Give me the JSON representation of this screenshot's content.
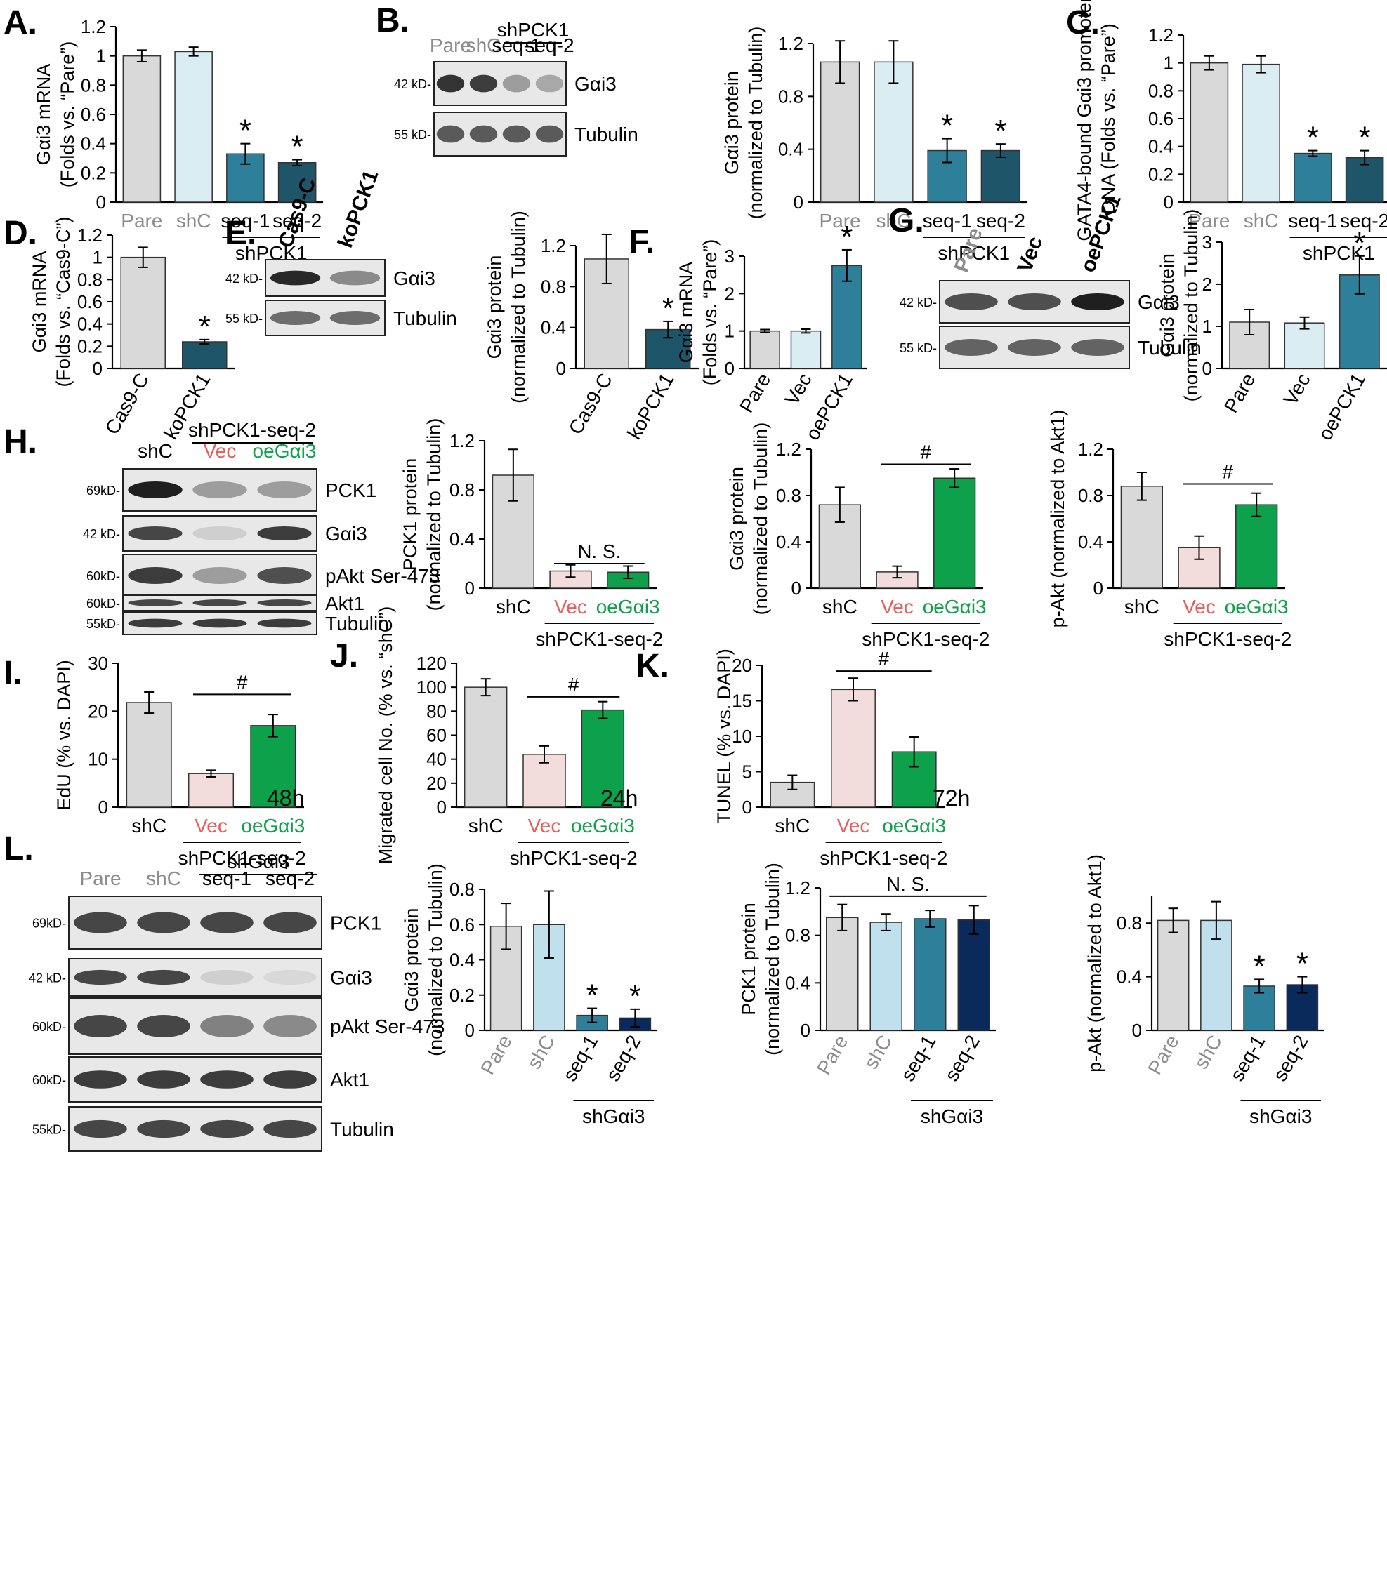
{
  "colors": {
    "gray": "#d9d9d9",
    "lightblue": "#d9edf3",
    "teal": "#2e7f9a",
    "darkteal": "#1e5569",
    "pink": "#f3dcdc",
    "green": "#0ea14b",
    "navy": "#0b2a5c",
    "graytext": "#8c8c8c",
    "red": "#e85c5c"
  },
  "blot_labels": {
    "kd42": "42 kD-",
    "kd55": "55 kD-",
    "kd69": "69kD-",
    "kd60": "60kD-",
    "kd55b": "55kD-",
    "gai3": "Gαi3",
    "tubulin": "Tubulin",
    "pck1": "PCK1",
    "pakt": "pAkt Ser-473",
    "akt1": "Akt1"
  },
  "extra_text": {
    "h48": "48h",
    "h24": "24h",
    "h72": "72h"
  },
  "chart_data": [
    {
      "id": "A",
      "panel": "A.",
      "type": "bar",
      "ylabel": [
        "Gαi3 mRNA",
        "(Folds vs. “Pare”)"
      ],
      "ylim": [
        0,
        1.2
      ],
      "ticks": [
        "0",
        "0.2",
        "0.4",
        "0.6",
        "0.8",
        "1",
        "1.2"
      ],
      "categories": [
        "Pare",
        "shC",
        "seq-1",
        "seq-2"
      ],
      "values": [
        1.0,
        1.03,
        0.33,
        0.27
      ],
      "errors": [
        0.04,
        0.03,
        0.07,
        0.02
      ],
      "colors": [
        "#d9d9d9",
        "#d9edf3",
        "#2e7f9a",
        "#1e5569"
      ],
      "labelColors": [
        "#8c8c8c",
        "#8c8c8c",
        "#000",
        "#000"
      ],
      "marks": [
        "",
        "",
        "*",
        "*"
      ],
      "group": {
        "label": "shPCK1",
        "from": 2,
        "to": 3
      },
      "rotate": false
    },
    {
      "id": "B",
      "panel": "B.",
      "type": "bar",
      "ylabel": [
        "Gαi3 protein",
        "(normalized to Tubulin)"
      ],
      "ylim": [
        0,
        1.2
      ],
      "ticks": [
        "0",
        "0.4",
        "0.8",
        "1.2"
      ],
      "categories": [
        "Pare",
        "shC",
        "seq-1",
        "seq-2"
      ],
      "values": [
        1.06,
        1.06,
        0.39,
        0.39
      ],
      "errors": [
        0.16,
        0.16,
        0.09,
        0.05
      ],
      "colors": [
        "#d9d9d9",
        "#d9edf3",
        "#2e7f9a",
        "#1e5569"
      ],
      "labelColors": [
        "#8c8c8c",
        "#8c8c8c",
        "#000",
        "#000"
      ],
      "marks": [
        "",
        "",
        "*",
        "*"
      ],
      "group": {
        "label": "shPCK1",
        "from": 2,
        "to": 3
      },
      "rotate": false
    },
    {
      "id": "C",
      "panel": "C.",
      "type": "bar",
      "ylabel": [
        "GATA4-bound Gαi3 promoter",
        "DNA (Folds vs. “Pare”)"
      ],
      "ylim": [
        0,
        1.2
      ],
      "ticks": [
        "0",
        "0.2",
        "0.4",
        "0.6",
        "0.8",
        "1",
        "1.2"
      ],
      "categories": [
        "Pare",
        "shC",
        "seq-1",
        "seq-2"
      ],
      "values": [
        1.0,
        0.99,
        0.35,
        0.32
      ],
      "errors": [
        0.05,
        0.06,
        0.02,
        0.05
      ],
      "colors": [
        "#d9d9d9",
        "#d9edf3",
        "#2e7f9a",
        "#1e5569"
      ],
      "labelColors": [
        "#8c8c8c",
        "#8c8c8c",
        "#000",
        "#000"
      ],
      "marks": [
        "",
        "",
        "*",
        "*"
      ],
      "group": {
        "label": "shPCK1",
        "from": 2,
        "to": 3
      },
      "rotate": false
    },
    {
      "id": "D",
      "panel": "D.",
      "type": "bar",
      "ylabel": [
        "Gαi3 mRNA",
        "(Folds vs. “Cas9-C”)"
      ],
      "ylim": [
        0,
        1.2
      ],
      "ticks": [
        "0",
        "0.2",
        "0.4",
        "0.6",
        "0.8",
        "1",
        "1.2"
      ],
      "categories": [
        "Cas9-C",
        "koPCK1"
      ],
      "values": [
        1.0,
        0.24
      ],
      "errors": [
        0.09,
        0.02
      ],
      "colors": [
        "#d9d9d9",
        "#1e5569"
      ],
      "labelColors": [
        "#000",
        "#000"
      ],
      "marks": [
        "",
        "*"
      ],
      "rotate": true
    },
    {
      "id": "E",
      "panel": "",
      "type": "bar",
      "ylabel": [
        "Gαi3 protein",
        "(normalized to Tubulin)"
      ],
      "ylim": [
        0,
        1.2
      ],
      "ticks": [
        "0",
        "0.4",
        "0.8",
        "1.2"
      ],
      "categories": [
        "Cas9-C",
        "koPCK1"
      ],
      "values": [
        1.07,
        0.38
      ],
      "errors": [
        0.24,
        0.08
      ],
      "colors": [
        "#d9d9d9",
        "#1e5569"
      ],
      "labelColors": [
        "#000",
        "#000"
      ],
      "marks": [
        "",
        "*"
      ],
      "rotate": true
    },
    {
      "id": "F",
      "panel": "F.",
      "type": "bar",
      "ylabel": [
        "Gαi3 mRNA",
        "(Folds vs. “Pare”)"
      ],
      "ylim": [
        0,
        3
      ],
      "ticks": [
        "0",
        "1",
        "2",
        "3"
      ],
      "categories": [
        "Pare",
        "Vec",
        "oePCK1"
      ],
      "values": [
        1.0,
        1.0,
        2.75
      ],
      "errors": [
        0.04,
        0.05,
        0.42
      ],
      "colors": [
        "#d9d9d9",
        "#d9edf3",
        "#2e7f9a"
      ],
      "labelColors": [
        "#000",
        "#000",
        "#000"
      ],
      "marks": [
        "",
        "",
        "*"
      ],
      "rotate": true
    },
    {
      "id": "G",
      "panel": "",
      "type": "bar",
      "ylabel": [
        "Gαi3 protein",
        "(normalized to Tubulin)"
      ],
      "ylim": [
        0,
        3
      ],
      "ticks": [
        "0",
        "1",
        "2",
        "3"
      ],
      "categories": [
        "Pare",
        "Vec",
        "oePCK1"
      ],
      "values": [
        1.1,
        1.08,
        2.22
      ],
      "errors": [
        0.3,
        0.14,
        0.45
      ],
      "colors": [
        "#d9d9d9",
        "#d9edf3",
        "#2e7f9a"
      ],
      "labelColors": [
        "#000",
        "#000",
        "#000"
      ],
      "marks": [
        "",
        "",
        "*"
      ],
      "rotate": true
    },
    {
      "id": "H1",
      "panel": "",
      "type": "bar",
      "ylabel": [
        "PCK1 protein",
        "(normalized to Tubulin)"
      ],
      "ylim": [
        0,
        1.2
      ],
      "ticks": [
        "0",
        "0.4",
        "0.8",
        "1.2"
      ],
      "categories": [
        "shC",
        "Vec",
        "oeGαi3"
      ],
      "values": [
        0.92,
        0.14,
        0.13
      ],
      "errors": [
        0.21,
        0.05,
        0.05
      ],
      "colors": [
        "#d9d9d9",
        "#f3dcdc",
        "#0ea14b"
      ],
      "labelColors": [
        "#000",
        "#e85c5c",
        "#0ea14b"
      ],
      "marks": [
        "",
        "",
        ""
      ],
      "group": {
        "label": "shPCK1-seq-2",
        "from": 1,
        "to": 2
      },
      "bracket": {
        "label": "N. S.",
        "from": 1,
        "to": 2,
        "y": 0.2
      },
      "rotate": false
    },
    {
      "id": "H2",
      "panel": "",
      "type": "bar",
      "ylabel": [
        "Gαi3 protein",
        "(normalized to Tubulin)"
      ],
      "ylim": [
        0,
        1.2
      ],
      "ticks": [
        "0",
        "0.4",
        "0.8",
        "1.2"
      ],
      "categories": [
        "shC",
        "Vec",
        "oeGαi3"
      ],
      "values": [
        0.72,
        0.14,
        0.95
      ],
      "errors": [
        0.15,
        0.05,
        0.08
      ],
      "colors": [
        "#d9d9d9",
        "#f3dcdc",
        "#0ea14b"
      ],
      "labelColors": [
        "#000",
        "#e85c5c",
        "#0ea14b"
      ],
      "marks": [
        "",
        "",
        ""
      ],
      "group": {
        "label": "shPCK1-seq-2",
        "from": 1,
        "to": 2
      },
      "bracket": {
        "label": "#",
        "from": 1,
        "to": 2,
        "y": 1.07
      },
      "rotate": false
    },
    {
      "id": "H3",
      "panel": "",
      "type": "bar",
      "ylabel": [
        "p-Akt (normalized to Akt1)"
      ],
      "ylim": [
        0,
        1.2
      ],
      "ticks": [
        "0",
        "0.4",
        "0.8",
        "1.2"
      ],
      "categories": [
        "shC",
        "Vec",
        "oeGαi3"
      ],
      "values": [
        0.88,
        0.35,
        0.72
      ],
      "errors": [
        0.12,
        0.1,
        0.1
      ],
      "colors": [
        "#d9d9d9",
        "#f3dcdc",
        "#0ea14b"
      ],
      "labelColors": [
        "#000",
        "#e85c5c",
        "#0ea14b"
      ],
      "marks": [
        "",
        "",
        ""
      ],
      "group": {
        "label": "shPCK1-seq-2",
        "from": 1,
        "to": 2
      },
      "bracket": {
        "label": "#",
        "from": 1,
        "to": 2,
        "y": 0.9
      },
      "rotate": false
    },
    {
      "id": "I",
      "panel": "I.",
      "type": "bar",
      "ylabel": [
        "EdU (% vs. DAPI)"
      ],
      "ylim": [
        0,
        30
      ],
      "ticks": [
        "0",
        "10",
        "20",
        "30"
      ],
      "categories": [
        "shC",
        "Vec",
        "oeGαi3"
      ],
      "values": [
        21.8,
        7.0,
        17.0
      ],
      "errors": [
        2.2,
        0.7,
        2.3
      ],
      "colors": [
        "#d9d9d9",
        "#f3dcdc",
        "#0ea14b"
      ],
      "labelColors": [
        "#000",
        "#e85c5c",
        "#0ea14b"
      ],
      "marks": [
        "",
        "",
        ""
      ],
      "group": {
        "label": "shPCK1-seq-2",
        "from": 1,
        "to": 2
      },
      "bracket": {
        "label": "#",
        "from": 1,
        "to": 2,
        "y": 23.5
      },
      "rotate": false
    },
    {
      "id": "J",
      "panel": "J.",
      "type": "bar",
      "ylabel": [
        "Migrated cell No. (% vs. “shC”)"
      ],
      "ylim": [
        0,
        120
      ],
      "ticks": [
        "0",
        "20",
        "40",
        "60",
        "80",
        "100",
        "120"
      ],
      "categories": [
        "shC",
        "Vec",
        "oeGαi3"
      ],
      "values": [
        100,
        44,
        81
      ],
      "errors": [
        7,
        7,
        7
      ],
      "colors": [
        "#d9d9d9",
        "#f3dcdc",
        "#0ea14b"
      ],
      "labelColors": [
        "#000",
        "#e85c5c",
        "#0ea14b"
      ],
      "marks": [
        "",
        "",
        ""
      ],
      "group": {
        "label": "shPCK1-seq-2",
        "from": 1,
        "to": 2
      },
      "bracket": {
        "label": "#",
        "from": 1,
        "to": 2,
        "y": 92
      },
      "rotate": false
    },
    {
      "id": "K",
      "panel": "K.",
      "type": "bar",
      "ylabel": [
        "TUNEL (% vs. DAPI)"
      ],
      "ylim": [
        0,
        20
      ],
      "ticks": [
        "0",
        "5",
        "10",
        "15",
        "20"
      ],
      "categories": [
        "shC",
        "Vec",
        "oeGαi3"
      ],
      "values": [
        3.5,
        16.6,
        7.8
      ],
      "errors": [
        1.0,
        1.6,
        2.1
      ],
      "colors": [
        "#d9d9d9",
        "#f3dcdc",
        "#0ea14b"
      ],
      "labelColors": [
        "#000",
        "#e85c5c",
        "#0ea14b"
      ],
      "marks": [
        "",
        "",
        ""
      ],
      "group": {
        "label": "shPCK1-seq-2",
        "from": 1,
        "to": 2
      },
      "bracket": {
        "label": "#",
        "from": 1,
        "to": 2,
        "y": 19.2
      },
      "rotate": false
    },
    {
      "id": "L1",
      "panel": "",
      "type": "bar",
      "ylabel": [
        "Gαi3 protein",
        "(normalized to Tubulin)"
      ],
      "ylim": [
        0,
        0.8
      ],
      "ticks": [
        "0",
        "0.2",
        "0.4",
        "0.6",
        "0.8"
      ],
      "categories": [
        "Pare",
        "shC",
        "seq-1",
        "seq-2"
      ],
      "values": [
        0.59,
        0.6,
        0.085,
        0.07
      ],
      "errors": [
        0.13,
        0.19,
        0.04,
        0.05
      ],
      "colors": [
        "#d9d9d9",
        "#bfe0ec",
        "#2e7f9a",
        "#0b2a5c"
      ],
      "labelColors": [
        "#8c8c8c",
        "#8c8c8c",
        "#000",
        "#000"
      ],
      "marks": [
        "",
        "",
        "*",
        "*"
      ],
      "group": {
        "label": "shGαi3",
        "from": 2,
        "to": 3
      },
      "rotate": true
    },
    {
      "id": "L2",
      "panel": "",
      "type": "bar",
      "ylabel": [
        "PCK1 protein",
        "(normalized to Tubulin)"
      ],
      "ylim": [
        0,
        1.2
      ],
      "ticks": [
        "0",
        "0.4",
        "0.8",
        "1.2"
      ],
      "categories": [
        "Pare",
        "shC",
        "seq-1",
        "seq-2"
      ],
      "values": [
        0.95,
        0.91,
        0.94,
        0.93
      ],
      "errors": [
        0.11,
        0.07,
        0.07,
        0.12
      ],
      "colors": [
        "#d9d9d9",
        "#bfe0ec",
        "#2e7f9a",
        "#0b2a5c"
      ],
      "labelColors": [
        "#8c8c8c",
        "#8c8c8c",
        "#000",
        "#000"
      ],
      "marks": [
        "",
        "",
        "",
        ""
      ],
      "group": {
        "label": "shGαi3",
        "from": 2,
        "to": 3
      },
      "bracket": {
        "label": "N. S.",
        "from": 0,
        "to": 3,
        "y": 1.13
      },
      "rotate": true
    },
    {
      "id": "L3",
      "panel": "",
      "type": "bar",
      "ylabel": [
        "p-Akt (normalized to Akt1)"
      ],
      "ylim": [
        0,
        1.0
      ],
      "ticks": [
        "0",
        "0.4",
        "0.8"
      ],
      "categories": [
        "Pare",
        "shC",
        "seq-1",
        "seq-2"
      ],
      "values": [
        0.82,
        0.82,
        0.33,
        0.34
      ],
      "errors": [
        0.09,
        0.14,
        0.05,
        0.06
      ],
      "colors": [
        "#d9d9d9",
        "#bfe0ec",
        "#2e7f9a",
        "#0b2a5c"
      ],
      "labelColors": [
        "#8c8c8c",
        "#8c8c8c",
        "#000",
        "#000"
      ],
      "marks": [
        "",
        "",
        "*",
        "*"
      ],
      "group": {
        "label": "shGαi3",
        "from": 2,
        "to": 3
      },
      "rotate": true
    }
  ],
  "blots": [
    {
      "id": "blotB",
      "panel": "B.",
      "lanes": [
        "Pare",
        "shC",
        "seq-1",
        "seq-2"
      ],
      "laneColors": [
        "#8c8c8c",
        "#8c8c8c",
        "#000",
        "#000"
      ],
      "laneBold": false,
      "laneRotate": false,
      "group": {
        "label": "shPCK1",
        "from": 2,
        "to": 3
      },
      "rows": [
        {
          "label": "Gαi3",
          "kd": "42 kD-",
          "int": [
            0.9,
            0.85,
            0.35,
            0.3
          ]
        },
        {
          "label": "Tubulin",
          "kd": "55 kD-",
          "int": [
            0.7,
            0.7,
            0.7,
            0.7
          ]
        }
      ]
    },
    {
      "id": "blotE",
      "panel": "E.",
      "lanes": [
        "Cas9-C",
        "koPCK1"
      ],
      "laneColors": [
        "#000",
        "#000"
      ],
      "laneBold": true,
      "laneRotate": true,
      "rows": [
        {
          "label": "Gαi3",
          "kd": "42 kD-",
          "int": [
            0.95,
            0.45
          ]
        },
        {
          "label": "Tubulin",
          "kd": "55 kD-",
          "int": [
            0.6,
            0.6
          ]
        }
      ]
    },
    {
      "id": "blotG",
      "panel": "G.",
      "lanes": [
        "Pare",
        "Vec",
        "oePCK1"
      ],
      "laneColors": [
        "#8c8c8c",
        "#000",
        "#000"
      ],
      "laneBold": true,
      "laneRotate": true,
      "rows": [
        {
          "label": "Gαi3",
          "kd": "42 kD-",
          "int": [
            0.75,
            0.75,
            1.0
          ]
        },
        {
          "label": "Tubulin",
          "kd": "55 kD-",
          "int": [
            0.65,
            0.65,
            0.65
          ]
        }
      ]
    },
    {
      "id": "blotH",
      "panel": "H.",
      "lanes": [
        "shC",
        "Vec",
        "oeGαi3"
      ],
      "laneColors": [
        "#000",
        "#e85c5c",
        "#0ea14b"
      ],
      "laneBold": false,
      "laneRotate": false,
      "group": {
        "label": "shPCK1-seq-2",
        "from": 1,
        "to": 2
      },
      "rows": [
        {
          "label": "PCK1",
          "kd": "69kD-",
          "int": [
            1.0,
            0.35,
            0.35
          ]
        },
        {
          "label": "Gαi3",
          "kd": "42 kD-",
          "int": [
            0.8,
            0.1,
            0.85
          ]
        },
        {
          "label": "pAkt Ser-473",
          "kd": "60kD-",
          "int": [
            0.85,
            0.35,
            0.75
          ]
        },
        {
          "label": "Akt1",
          "kd": "60kD-",
          "int": [
            0.8,
            0.8,
            0.8
          ]
        },
        {
          "label": "Tubulin",
          "kd": "55kD-",
          "int": [
            0.85,
            0.85,
            0.85
          ]
        }
      ]
    },
    {
      "id": "blotL",
      "panel": "L.",
      "lanes": [
        "Pare",
        "shC",
        "seq-1",
        "seq-2"
      ],
      "laneColors": [
        "#8c8c8c",
        "#8c8c8c",
        "#000",
        "#000"
      ],
      "laneBold": false,
      "laneRotate": false,
      "group": {
        "label": "shGαi3",
        "from": 2,
        "to": 3
      },
      "rows": [
        {
          "label": "PCK1",
          "kd": "69kD-",
          "int": [
            0.8,
            0.8,
            0.8,
            0.8
          ]
        },
        {
          "label": "Gαi3",
          "kd": "42 kD-",
          "int": [
            0.8,
            0.8,
            0.1,
            0.05
          ]
        },
        {
          "label": "pAkt Ser-473",
          "kd": "60kD-",
          "int": [
            0.8,
            0.8,
            0.5,
            0.45
          ]
        },
        {
          "label": "Akt1",
          "kd": "60kD-",
          "int": [
            0.85,
            0.85,
            0.85,
            0.85
          ]
        },
        {
          "label": "Tubulin",
          "kd": "55kD-",
          "int": [
            0.8,
            0.8,
            0.8,
            0.8
          ]
        }
      ]
    }
  ]
}
